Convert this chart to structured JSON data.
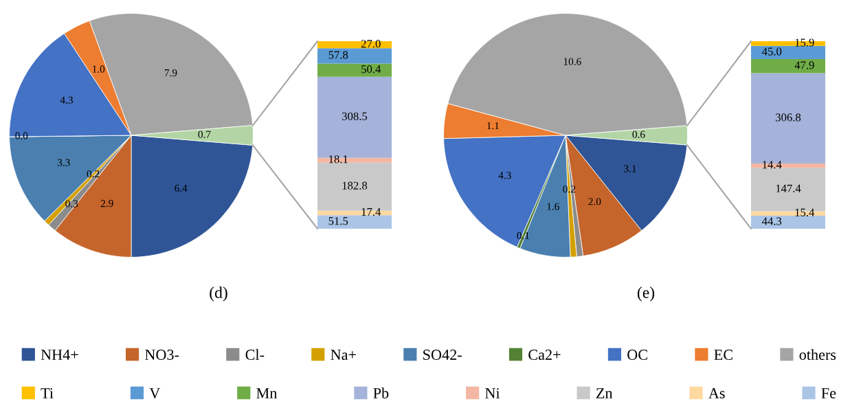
{
  "chart_data": [
    {
      "type": "pie",
      "title": "(d)",
      "categories": [
        "NH4+",
        "NO3-",
        "Cl-",
        "Na+",
        "SO42-",
        "Ca2+",
        "OC",
        "EC",
        "others",
        null
      ],
      "values": [
        6.4,
        2.9,
        0.3,
        0.2,
        3.3,
        0.0,
        4.3,
        1.0,
        7.9,
        0.7
      ],
      "value_labels": [
        "6.4",
        "2.9",
        "0.3",
        "0.2",
        "3.3",
        "0.0",
        "4.3",
        "1.0",
        "7.9",
        "0.7"
      ],
      "colors": [
        "#2f5597",
        "#c5652b",
        "#8c8c8c",
        "#d4a000",
        "#4a7fb0",
        "#548235",
        "#4472c4",
        "#ed7d31",
        "#a5a5a5",
        "#b3d5a5"
      ],
      "legend": "bottom"
    },
    {
      "type": "bar",
      "stacked": true,
      "categories": [
        null
      ],
      "legend": "bottom",
      "series": [
        {
          "name": "Fe",
          "color": "#aac5e6",
          "values": [
            51.5
          ],
          "value_labels": [
            "51.5"
          ]
        },
        {
          "name": "As",
          "color": "#ffd9a0",
          "values": [
            17.4
          ],
          "value_labels": [
            "17.4"
          ]
        },
        {
          "name": "Zn",
          "color": "#c9c9c9",
          "values": [
            182.8
          ],
          "value_labels": [
            "182.8"
          ]
        },
        {
          "name": "Ni",
          "color": "#f4b7a3",
          "values": [
            18.1
          ],
          "value_labels": [
            "18.1"
          ]
        },
        {
          "name": "Pb",
          "color": "#a5b3da",
          "values": [
            308.5
          ],
          "value_labels": [
            "308.5"
          ]
        },
        {
          "name": "Mn",
          "color": "#70ad47",
          "values": [
            50.4
          ],
          "value_labels": [
            "50.4"
          ]
        },
        {
          "name": "V",
          "color": "#5b9bd5",
          "values": [
            57.8
          ],
          "value_labels": [
            "57.8"
          ]
        },
        {
          "name": "Ti",
          "color": "#ffc000",
          "values": [
            27.0
          ],
          "value_labels": [
            "27.0"
          ]
        }
      ]
    },
    {
      "type": "pie",
      "title": "(e)",
      "categories": [
        null,
        null,
        null,
        null,
        null,
        null,
        null,
        null,
        null,
        null
      ],
      "values": [
        3.1,
        2.0,
        0.2,
        0.2,
        1.6,
        0.1,
        4.3,
        1.1,
        10.6,
        0.6
      ],
      "value_labels": [
        "3.1",
        "2.0",
        null,
        "0.2",
        "1.6",
        "0.1",
        "4.3",
        "1.1",
        "10.6",
        "0.6"
      ],
      "colors": [
        "#2f5597",
        "#c5652b",
        "#8c8c8c",
        "#d4a000",
        "#4a7fb0",
        "#548235",
        "#4472c4",
        "#ed7d31",
        "#a5a5a5",
        "#b3d5a5"
      ]
    },
    {
      "type": "bar",
      "stacked": true,
      "categories": [
        null
      ],
      "series": [
        {
          "color": "#aac5e6",
          "values": [
            44.3
          ],
          "value_labels": [
            "44.3"
          ]
        },
        {
          "color": "#ffd9a0",
          "values": [
            15.4
          ],
          "value_labels": [
            "15.4"
          ]
        },
        {
          "color": "#c9c9c9",
          "values": [
            147.4
          ],
          "value_labels": [
            "147.4"
          ]
        },
        {
          "color": "#f4b7a3",
          "values": [
            14.4
          ],
          "value_labels": [
            "14.4"
          ]
        },
        {
          "color": "#a5b3da",
          "values": [
            306.8
          ],
          "value_labels": [
            "306.8"
          ]
        },
        {
          "color": "#70ad47",
          "values": [
            47.9
          ],
          "value_labels": [
            "47.9"
          ]
        },
        {
          "color": "#5b9bd5",
          "values": [
            45.0
          ],
          "value_labels": [
            "45.0"
          ]
        },
        {
          "color": "#ffc000",
          "values": [
            15.9
          ],
          "value_labels": [
            "15.9"
          ]
        }
      ]
    }
  ]
}
